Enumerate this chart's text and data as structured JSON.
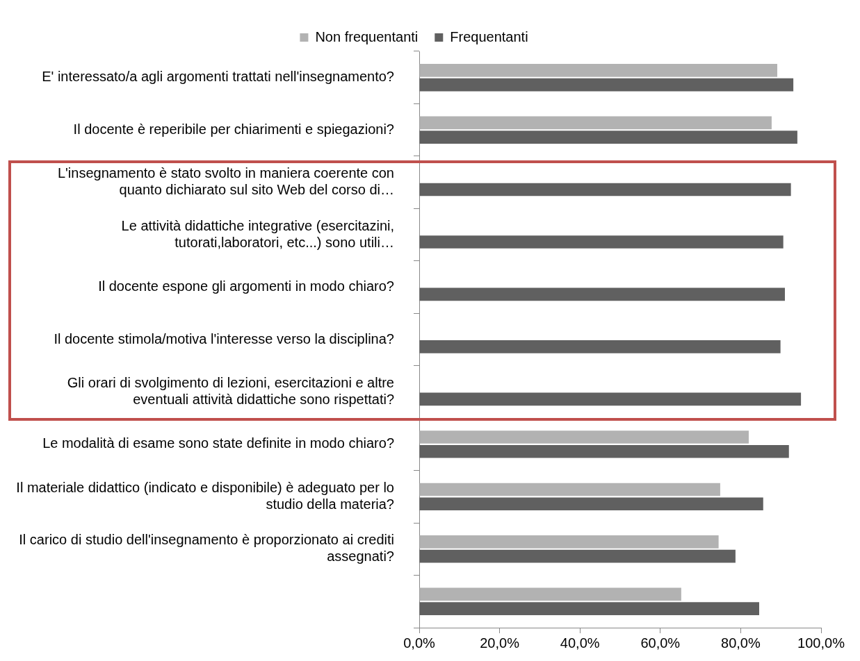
{
  "chart_data": {
    "type": "bar",
    "orientation": "horizontal",
    "categories": [
      "E' interessato/a agli argomenti trattati nell'insegnamento?",
      "Il docente è reperibile per chiarimenti e spiegazioni?",
      "L'insegnamento è stato svolto in maniera coerente con quanto dichiarato sul sito Web del corso di…",
      "Le attività didattiche integrative (esercitazini, tutorati,laboratori, etc...) sono utili…",
      "Il docente espone gli argomenti in modo chiaro?",
      "Il docente stimola/motiva l'interesse verso la disciplina?",
      "Gli orari di svolgimento di lezioni, esercitazioni e altre eventuali attività didattiche sono rispettati?",
      "Le modalità di esame sono state definite in modo chiaro?",
      "Il materiale didattico (indicato e disponibile) è adeguato per lo studio della materia?",
      "Il carico di studio dell'insegnamento è proporzionato ai crediti assegnati?",
      null
    ],
    "series": [
      {
        "name": "Non frequentanti",
        "color": "#b2b2b2",
        "values": [
          89.1,
          87.7,
          null,
          null,
          null,
          null,
          null,
          82.0,
          74.9,
          74.5,
          65.2
        ]
      },
      {
        "name": "Frequentanti",
        "color": "#606060",
        "values": [
          93.1,
          94.1,
          92.5,
          90.6,
          91.0,
          89.9,
          95.0,
          92.0,
          85.6,
          78.7,
          84.6
        ]
      }
    ],
    "xlim": [
      0,
      100
    ],
    "xticks": [
      {
        "value": 0,
        "label": "0,0%"
      },
      {
        "value": 20,
        "label": "20,0%"
      },
      {
        "value": 40,
        "label": "40,0%"
      },
      {
        "value": 60,
        "label": "60,0%"
      },
      {
        "value": 80,
        "label": "80,0%"
      },
      {
        "value": 100,
        "label": "100,0%"
      }
    ],
    "grid": false,
    "legend": "top"
  }
}
